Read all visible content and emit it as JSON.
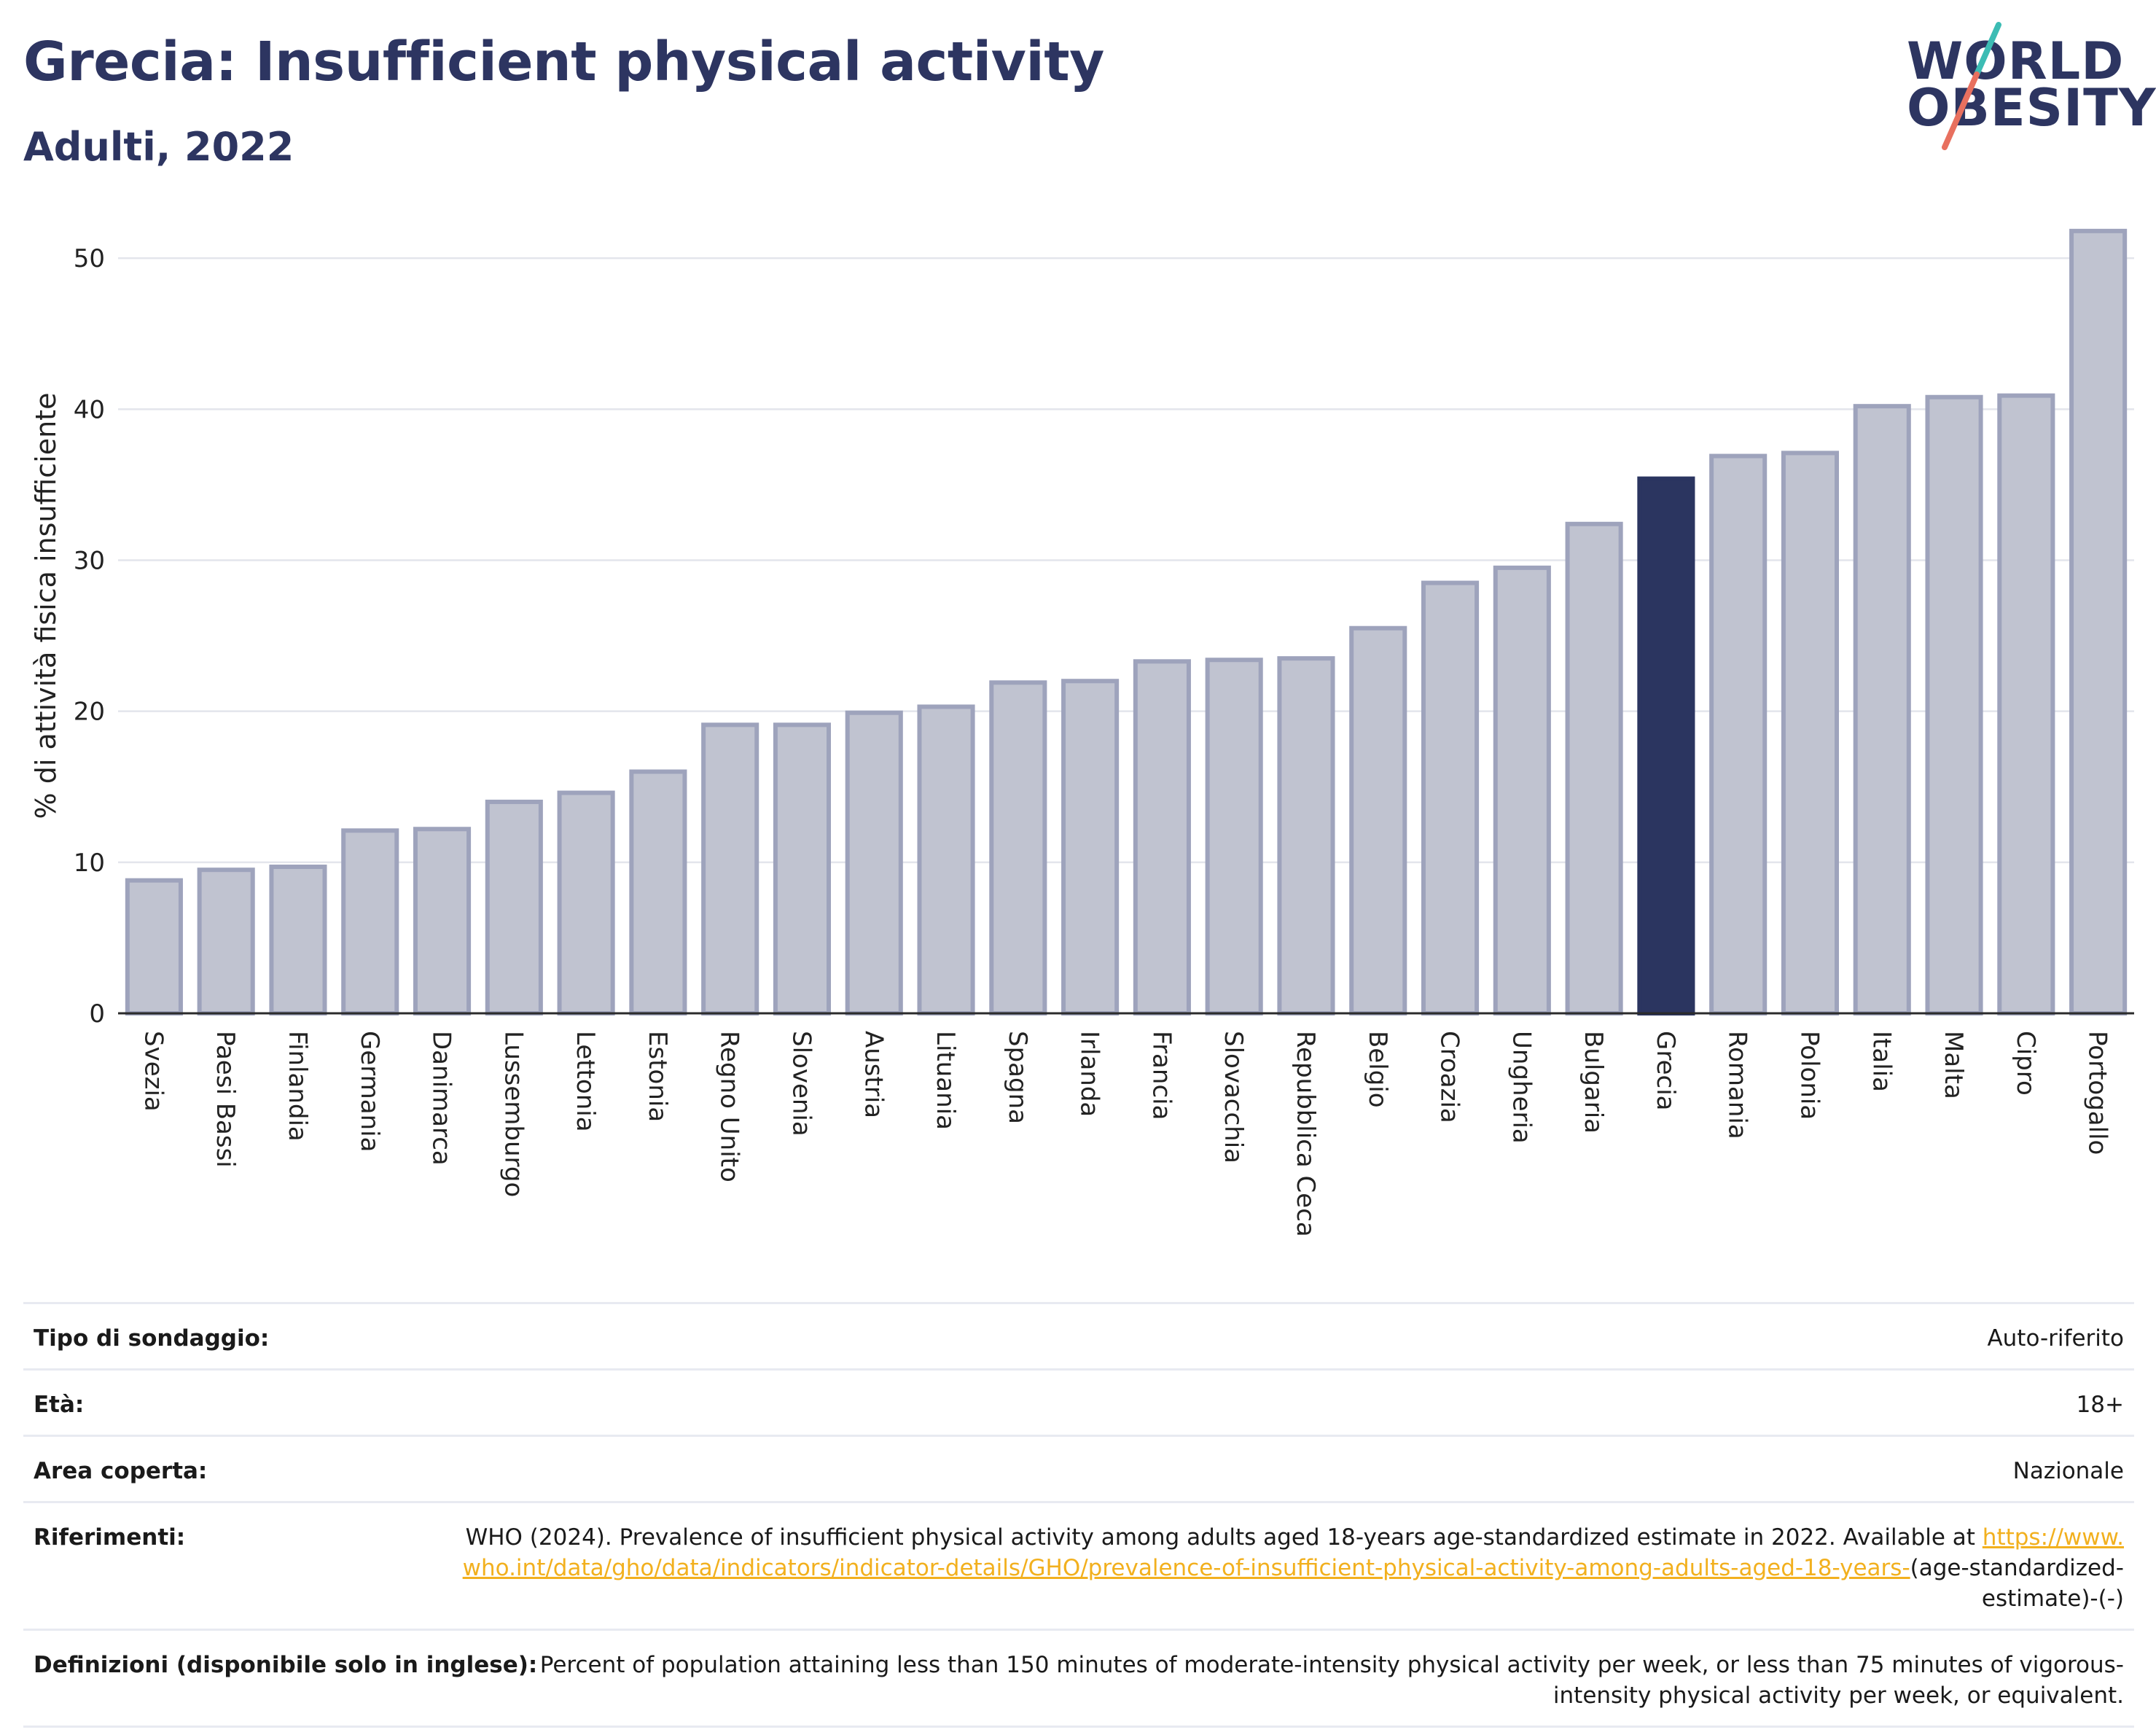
{
  "header": {
    "title": "Grecia: Insufficient physical activity",
    "subtitle": "Adulti, 2022"
  },
  "logo": {
    "line1": "WORLD",
    "line2": "OBESITY",
    "colors": {
      "text": "#2d3561",
      "slash_top": "#3cbcb4",
      "slash_bottom": "#e8705f"
    }
  },
  "chart_data": {
    "type": "bar",
    "ylabel": "% di attività fisica insufficiente",
    "xlabel": "",
    "ylim": [
      0,
      53
    ],
    "yticks": [
      0,
      10,
      20,
      30,
      40,
      50
    ],
    "grid": true,
    "highlight": "Grecia",
    "colors": {
      "bar": "#c0c3d0",
      "bar_border": "#9ea3bc",
      "highlight": "#2b3560"
    },
    "categories": [
      "Svezia",
      "Paesi Bassi",
      "Finlandia",
      "Germania",
      "Danimarca",
      "Lussemburgo",
      "Lettonia",
      "Estonia",
      "Regno Unito",
      "Slovenia",
      "Austria",
      "Lituania",
      "Spagna",
      "Irlanda",
      "Francia",
      "Slovacchia",
      "Repubblica Ceca",
      "Belgio",
      "Croazia",
      "Ungheria",
      "Bulgaria",
      "Grecia",
      "Romania",
      "Polonia",
      "Italia",
      "Malta",
      "Cipro",
      "Portogallo"
    ],
    "values": [
      8.8,
      9.5,
      9.7,
      12.1,
      12.2,
      14.0,
      14.6,
      16.0,
      19.1,
      19.1,
      19.9,
      20.3,
      21.9,
      22.0,
      23.3,
      23.4,
      23.5,
      25.5,
      28.5,
      29.5,
      32.4,
      35.4,
      36.9,
      37.1,
      40.2,
      40.8,
      40.9,
      51.8
    ]
  },
  "info": {
    "survey": {
      "label": "Tipo di sondaggio:",
      "value": "Auto-riferito"
    },
    "age": {
      "label": "Età:",
      "value": "18+"
    },
    "area": {
      "label": "Area coperta:",
      "value": "Nazionale"
    },
    "references": {
      "label": "Riferimenti:",
      "text": "WHO (2024). Prevalence of insufficient physical activity among adults aged 18-years age-standardized estimate in 2022. Available at",
      "link": "https://www.who.int/data/gho/data/indicators/indicator-details/GHO/prevalence-of-insufficient-physical-activity-among-adults-aged-18-years-",
      "suffix": "(age-standardized-estimate)-(-)"
    },
    "definitions": {
      "label": "Definizioni (disponibile solo in inglese):",
      "value": "Percent of population attaining less than 150 minutes of moderate-intensity physical activity per week, or less than 75 minutes of vigorous-intensity physical activity per week, or equivalent."
    }
  }
}
